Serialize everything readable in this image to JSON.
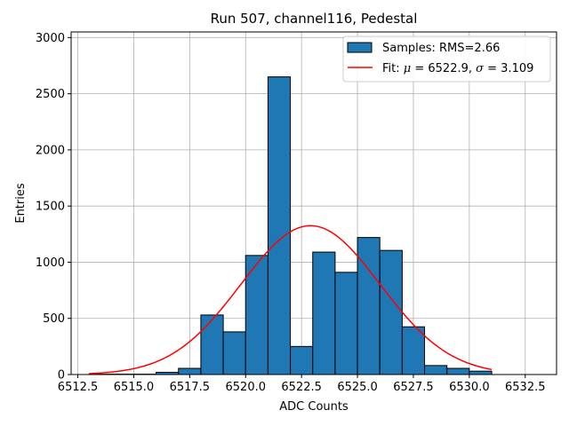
{
  "chart_data": {
    "type": "bar",
    "title": "Run 507, channel116, Pedestal",
    "xlabel": "ADC Counts",
    "ylabel": "Entries",
    "xlim": [
      6512.2,
      6533.9
    ],
    "ylim": [
      0,
      3050
    ],
    "grid": true,
    "legend_placement": "top-right",
    "bin_edges": [
      6513,
      6514,
      6515,
      6516,
      6517,
      6518,
      6519,
      6520,
      6521,
      6522,
      6523,
      6524,
      6525,
      6526,
      6527,
      6528,
      6529,
      6530,
      6531
    ],
    "values": [
      3,
      3,
      3,
      20,
      55,
      530,
      380,
      1060,
      2650,
      250,
      1090,
      910,
      1220,
      1105,
      425,
      80,
      55,
      30
    ],
    "x_ticks": [
      6512.5,
      6515.0,
      6517.5,
      6520.0,
      6522.5,
      6525.0,
      6527.5,
      6530.0,
      6532.5
    ],
    "x_tick_labels": [
      "6512.5",
      "6515.0",
      "6517.5",
      "6520.0",
      "6522.5",
      "6525.0",
      "6527.5",
      "6530.0",
      "6532.5"
    ],
    "y_ticks": [
      0,
      500,
      1000,
      1500,
      2000,
      2500,
      3000
    ],
    "y_tick_labels": [
      "0",
      "500",
      "1000",
      "1500",
      "2000",
      "2500",
      "3000"
    ],
    "fit": {
      "mu": 6522.9,
      "sigma": 3.109,
      "amplitude": 1325,
      "x_range": [
        6513,
        6531
      ]
    },
    "colors": {
      "bar": "#1f77b4",
      "fit": "#ff0000",
      "grid": "#b0b0b0"
    },
    "legend": {
      "samples_label": "Samples: RMS=2.66",
      "fit_prefix": "Fit: ",
      "mu_symbol": "μ",
      "mu_text": " = 6522.9, ",
      "sigma_symbol": "σ",
      "sigma_text": " = 3.109"
    }
  }
}
